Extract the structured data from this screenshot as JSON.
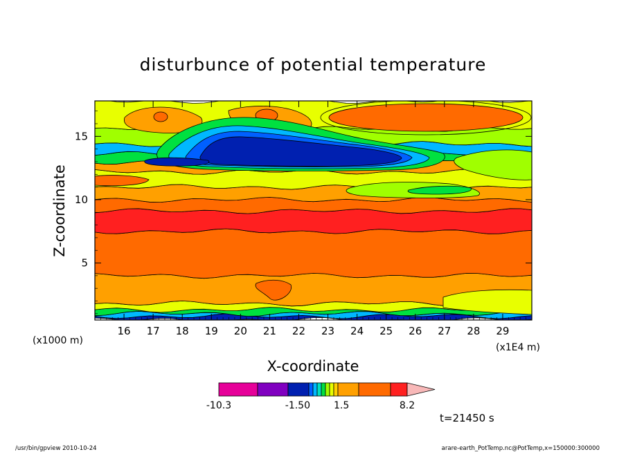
{
  "chart_data": {
    "type": "heatmap",
    "title": "disturbunce of potential temperature",
    "xlabel": "X-coordinate",
    "ylabel": "Z-coordinate",
    "x_unit": "(x1E4 m)",
    "y_unit": "(x1000 m)",
    "x_ticks": [
      "16",
      "17",
      "18",
      "19",
      "20",
      "21",
      "22",
      "23",
      "24",
      "25",
      "26",
      "27",
      "28",
      "29"
    ],
    "y_ticks": [
      "5",
      "10",
      "15"
    ],
    "xlim": [
      15.0,
      30.0
    ],
    "ylim": [
      0.5,
      17.8
    ],
    "colorbar": {
      "labels": [
        "-10.3",
        "-1.50",
        "1.5",
        "8.2"
      ],
      "colors": [
        "#e60099",
        "#8000c0",
        "#0020b0",
        "#0060ff",
        "#00b8ff",
        "#00e0c0",
        "#00e040",
        "#a0ff00",
        "#e8ff00",
        "#ffd000",
        "#ffa000",
        "#ff6a00",
        "#ff2020",
        "#f88080",
        "#f8b8b8"
      ]
    },
    "field_bands": [
      {
        "z_bottom": 0.5,
        "z_top": 0.8,
        "color": "#0020b0"
      },
      {
        "z_bottom": 0.8,
        "z_top": 1.0,
        "color": "#00b8ff"
      },
      {
        "z_bottom": 1.0,
        "z_top": 1.3,
        "color": "#00e040"
      },
      {
        "z_bottom": 1.3,
        "z_top": 1.8,
        "color": "#e8ff00"
      },
      {
        "z_bottom": 1.8,
        "z_top": 4.0,
        "color": "#ffa000"
      },
      {
        "z_bottom": 4.0,
        "z_top": 7.5,
        "color": "#ff6a00"
      },
      {
        "z_bottom": 7.5,
        "z_top": 9.1,
        "color": "#ff2020"
      },
      {
        "z_bottom": 9.1,
        "z_top": 10.0,
        "color": "#ff6a00"
      },
      {
        "z_bottom": 10.0,
        "z_top": 11.0,
        "color": "#ffa000"
      },
      {
        "z_bottom": 11.0,
        "z_top": 12.2,
        "color": "#e8ff00"
      },
      {
        "z_bottom": 12.2,
        "z_top": 13.0,
        "color": "#ffa000"
      },
      {
        "z_bottom": 13.0,
        "z_top": 13.6,
        "color": "#00e040"
      },
      {
        "z_bottom": 13.6,
        "z_top": 14.4,
        "color": "#00b8ff"
      },
      {
        "z_bottom": 14.4,
        "z_top": 15.6,
        "color": "#a0ff00"
      },
      {
        "z_bottom": 15.6,
        "z_top": 17.8,
        "color": "#e8ff00"
      }
    ]
  },
  "time_label": "t=21450 s",
  "footer": {
    "left": "/usr/bin/gpview   2010-10-24",
    "right": "arare-earth_PotTemp.nc@PotTemp,x=150000:300000"
  }
}
